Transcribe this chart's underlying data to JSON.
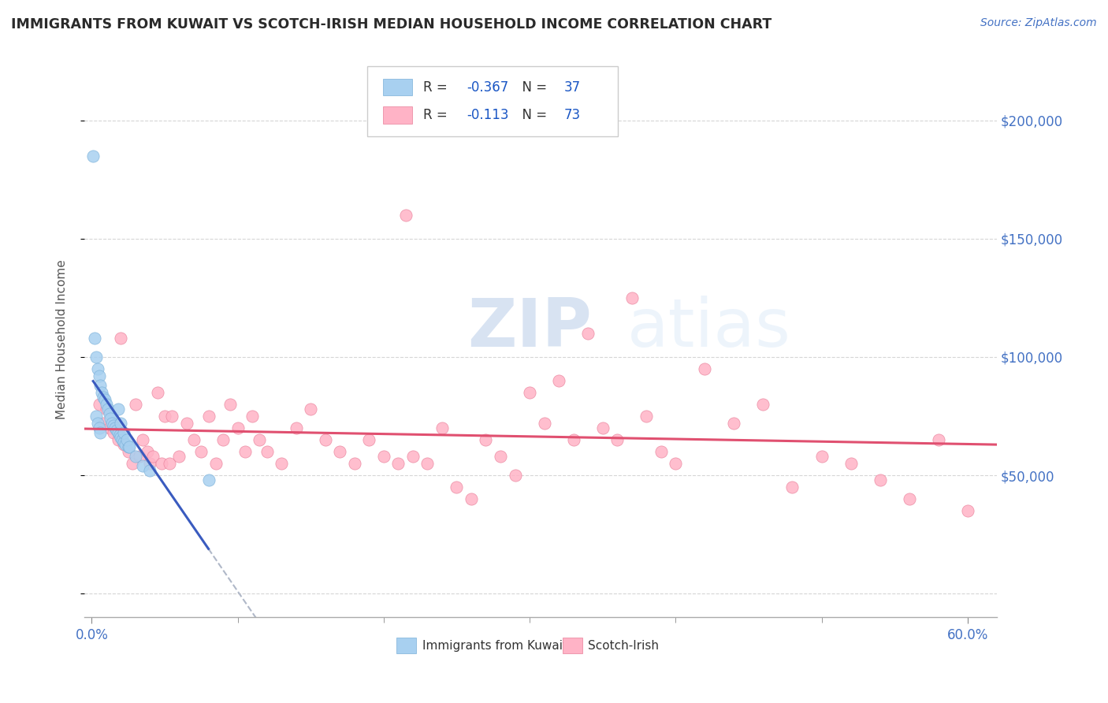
{
  "title": "IMMIGRANTS FROM KUWAIT VS SCOTCH-IRISH MEDIAN HOUSEHOLD INCOME CORRELATION CHART",
  "source": "Source: ZipAtlas.com",
  "ylabel": "Median Household Income",
  "watermark": "ZIPatlas",
  "xlim": [
    -0.005,
    0.62
  ],
  "ylim": [
    -10000,
    225000
  ],
  "yticks": [
    0,
    50000,
    100000,
    150000,
    200000
  ],
  "ytick_labels": [
    "",
    "$50,000",
    "$100,000",
    "$150,000",
    "$200,000"
  ],
  "xtick_left": 0.0,
  "xtick_right": 0.6,
  "xtick_label_left": "0.0%",
  "xtick_label_right": "60.0%",
  "xtick_minor": [
    0.1,
    0.2,
    0.3,
    0.4,
    0.5
  ],
  "background_color": "#ffffff",
  "grid_color": "#cccccc",
  "title_color": "#2a2a2a",
  "axis_color": "#4472c4",
  "legend1_label": "Immigrants from Kuwait",
  "legend2_label": "Scotch-Irish",
  "series1_color": "#a8d0f0",
  "series2_color": "#ffb3c6",
  "series1_edge": "#7ab0d8",
  "series2_edge": "#e8809a",
  "line1_color": "#3a5bbf",
  "line2_color": "#e05070",
  "dashed_line_color": "#b0b8c8",
  "r1": -0.367,
  "n1": 37,
  "r2": -0.113,
  "n2": 73,
  "legend_r_color": "#1a56c4",
  "series1_x": [
    0.001,
    0.002,
    0.003,
    0.004,
    0.005,
    0.006,
    0.007,
    0.008,
    0.009,
    0.01,
    0.011,
    0.012,
    0.013,
    0.014,
    0.015,
    0.016,
    0.017,
    0.018,
    0.019,
    0.02,
    0.021,
    0.022,
    0.023,
    0.025,
    0.003,
    0.004,
    0.005,
    0.006,
    0.018,
    0.02,
    0.022,
    0.024,
    0.026,
    0.03,
    0.035,
    0.04,
    0.08
  ],
  "series1_y": [
    185000,
    108000,
    100000,
    95000,
    92000,
    88000,
    85000,
    83000,
    82000,
    80000,
    78000,
    76000,
    74000,
    72000,
    71000,
    70000,
    69000,
    68000,
    67000,
    66000,
    65000,
    64000,
    63000,
    62000,
    75000,
    72000,
    70000,
    68000,
    78000,
    72000,
    68000,
    65000,
    62000,
    58000,
    54000,
    52000,
    48000
  ],
  "series2_x": [
    0.005,
    0.008,
    0.01,
    0.012,
    0.015,
    0.018,
    0.02,
    0.022,
    0.025,
    0.028,
    0.03,
    0.033,
    0.035,
    0.038,
    0.04,
    0.042,
    0.045,
    0.048,
    0.05,
    0.053,
    0.055,
    0.06,
    0.065,
    0.07,
    0.075,
    0.08,
    0.085,
    0.09,
    0.095,
    0.1,
    0.105,
    0.11,
    0.115,
    0.12,
    0.13,
    0.14,
    0.15,
    0.16,
    0.17,
    0.18,
    0.19,
    0.2,
    0.21,
    0.215,
    0.22,
    0.23,
    0.24,
    0.25,
    0.26,
    0.27,
    0.28,
    0.29,
    0.3,
    0.31,
    0.32,
    0.33,
    0.34,
    0.35,
    0.36,
    0.37,
    0.38,
    0.39,
    0.4,
    0.42,
    0.44,
    0.46,
    0.48,
    0.5,
    0.52,
    0.54,
    0.56,
    0.58,
    0.6
  ],
  "series2_y": [
    80000,
    72000,
    78000,
    70000,
    68000,
    65000,
    108000,
    63000,
    60000,
    55000,
    80000,
    58000,
    65000,
    60000,
    55000,
    58000,
    85000,
    55000,
    75000,
    55000,
    75000,
    58000,
    72000,
    65000,
    60000,
    75000,
    55000,
    65000,
    80000,
    70000,
    60000,
    75000,
    65000,
    60000,
    55000,
    70000,
    78000,
    65000,
    60000,
    55000,
    65000,
    58000,
    55000,
    160000,
    58000,
    55000,
    70000,
    45000,
    40000,
    65000,
    58000,
    50000,
    85000,
    72000,
    90000,
    65000,
    110000,
    70000,
    65000,
    125000,
    75000,
    60000,
    55000,
    95000,
    72000,
    80000,
    45000,
    58000,
    55000,
    48000,
    40000,
    65000,
    35000
  ]
}
